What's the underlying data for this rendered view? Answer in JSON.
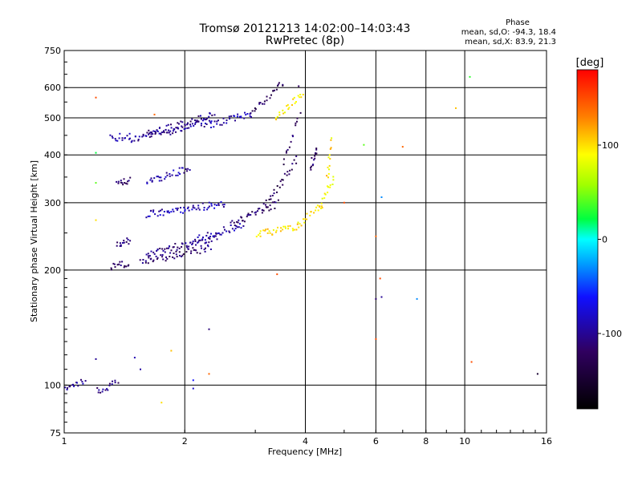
{
  "chart_data": {
    "type": "scatter",
    "title": "Tromsø 20121213 14:02:00–14:03:43",
    "subtitle": "RwPretec (8p)",
    "xlabel": "Frequency [MHz]",
    "ylabel": "Stationary phase Virtual Height [km]",
    "x_scale": "log",
    "y_scale": "log",
    "xlim": [
      1,
      16
    ],
    "ylim": [
      75,
      750
    ],
    "x_ticks": [
      1,
      2,
      4,
      6,
      8,
      10,
      16
    ],
    "x_tick_labels": [
      "1",
      "2",
      "4",
      "6",
      "8",
      "10",
      "16"
    ],
    "y_ticks": [
      75,
      100,
      200,
      300,
      400,
      500,
      600,
      750
    ],
    "y_tick_labels": [
      "75",
      "100",
      "200",
      "300",
      "400",
      "500",
      "600",
      "750"
    ],
    "grid": true,
    "phase_stats": {
      "heading": "Phase",
      "line_o": "mean, sd,O: -94.3, 18.4",
      "line_x": "mean, sd,X:  83.9, 21.3"
    },
    "colorbar": {
      "label": "[deg]",
      "min": -180,
      "max": 180,
      "ticks": [
        100,
        0,
        -100
      ],
      "tick_labels": [
        "100",
        "0",
        "-100"
      ]
    },
    "traces": [
      {
        "x1": 1.45,
        "x2": 2.3,
        "h1": 440,
        "h2": 490,
        "p": -100
      },
      {
        "x1": 1.6,
        "x2": 2.35,
        "h1": 455,
        "h2": 510,
        "p": -108
      },
      {
        "x1": 2.3,
        "x2": 2.9,
        "h1": 480,
        "h2": 515,
        "p": -90
      },
      {
        "x1": 2.9,
        "x2": 3.5,
        "h1": 515,
        "h2": 620,
        "p": -120
      },
      {
        "x1": 3.35,
        "x2": 3.9,
        "h1": 500,
        "h2": 580,
        "p": 95
      },
      {
        "x1": 1.3,
        "x2": 1.45,
        "h1": 445,
        "h2": 450,
        "p": -100
      },
      {
        "x1": 1.6,
        "x2": 2.05,
        "h1": 340,
        "h2": 370,
        "p": -95
      },
      {
        "x1": 1.35,
        "x2": 1.45,
        "h1": 338,
        "h2": 345,
        "p": -110
      },
      {
        "x1": 1.6,
        "x2": 2.5,
        "h1": 280,
        "h2": 300,
        "p": -88
      },
      {
        "x1": 1.35,
        "x2": 1.45,
        "h1": 232,
        "h2": 240,
        "p": -112
      },
      {
        "x1": 1.6,
        "x2": 2.4,
        "h1": 222,
        "h2": 245,
        "p": -105
      },
      {
        "x1": 1.55,
        "x2": 2.3,
        "h1": 210,
        "h2": 230,
        "p": -115
      },
      {
        "x1": 1.3,
        "x2": 1.45,
        "h1": 205,
        "h2": 210,
        "p": -118
      },
      {
        "x1": 2.1,
        "x2": 2.8,
        "h1": 240,
        "h2": 265,
        "p": -95
      },
      {
        "x1": 2.6,
        "x2": 3.4,
        "h1": 265,
        "h2": 300,
        "p": -118
      },
      {
        "x1": 3.1,
        "x2": 3.8,
        "h1": 290,
        "h2": 390,
        "p": -125
      },
      {
        "x1": 3.5,
        "x2": 3.85,
        "h1": 380,
        "h2": 520,
        "p": -120
      },
      {
        "x1": 3.0,
        "x2": 3.8,
        "h1": 248,
        "h2": 262,
        "p": 100
      },
      {
        "x1": 3.8,
        "x2": 4.4,
        "h1": 262,
        "h2": 300,
        "p": 95
      },
      {
        "x1": 4.3,
        "x2": 4.7,
        "h1": 290,
        "h2": 350,
        "p": 92
      },
      {
        "x1": 4.5,
        "x2": 4.65,
        "h1": 340,
        "h2": 440,
        "p": 98
      },
      {
        "x1": 4.1,
        "x2": 4.25,
        "h1": 370,
        "h2": 420,
        "p": -118
      },
      {
        "x1": 1.0,
        "x2": 1.12,
        "h1": 97,
        "h2": 103,
        "p": -100
      },
      {
        "x1": 1.2,
        "x2": 1.35,
        "h1": 97,
        "h2": 102,
        "p": -105
      }
    ],
    "points": [
      {
        "x": 1.2,
        "h": 565,
        "p": 150
      },
      {
        "x": 1.68,
        "h": 510,
        "p": 140
      },
      {
        "x": 1.2,
        "h": 405,
        "p": 20
      },
      {
        "x": 1.2,
        "h": 338,
        "p": 40
      },
      {
        "x": 1.2,
        "h": 270,
        "p": 100
      },
      {
        "x": 1.2,
        "h": 117,
        "p": -100
      },
      {
        "x": 1.5,
        "h": 118,
        "p": -90
      },
      {
        "x": 1.55,
        "h": 110,
        "p": -95
      },
      {
        "x": 1.85,
        "h": 123,
        "p": 110
      },
      {
        "x": 1.75,
        "h": 90,
        "p": 100
      },
      {
        "x": 2.1,
        "h": 98,
        "p": -80
      },
      {
        "x": 2.1,
        "h": 103,
        "p": -60
      },
      {
        "x": 2.3,
        "h": 107,
        "p": 140
      },
      {
        "x": 2.3,
        "h": 140,
        "p": -110
      },
      {
        "x": 3.4,
        "h": 195,
        "p": 150
      },
      {
        "x": 3.95,
        "h": 575,
        "p": 100
      },
      {
        "x": 3.85,
        "h": 605,
        "p": -120
      },
      {
        "x": 5.6,
        "h": 425,
        "p": 40
      },
      {
        "x": 6.2,
        "h": 310,
        "p": -30
      },
      {
        "x": 6.0,
        "h": 245,
        "p": 140
      },
      {
        "x": 6.15,
        "h": 190,
        "p": 150
      },
      {
        "x": 6.0,
        "h": 168,
        "p": -115
      },
      {
        "x": 6.2,
        "h": 170,
        "p": -100
      },
      {
        "x": 6.0,
        "h": 132,
        "p": 150
      },
      {
        "x": 7.0,
        "h": 420,
        "p": 140
      },
      {
        "x": 7.6,
        "h": 168,
        "p": -30
      },
      {
        "x": 9.5,
        "h": 530,
        "p": 110
      },
      {
        "x": 10.3,
        "h": 640,
        "p": 30
      },
      {
        "x": 10.4,
        "h": 115,
        "p": 150
      },
      {
        "x": 15.2,
        "h": 107,
        "p": -150
      },
      {
        "x": 5.0,
        "h": 300,
        "p": 150
      }
    ]
  }
}
